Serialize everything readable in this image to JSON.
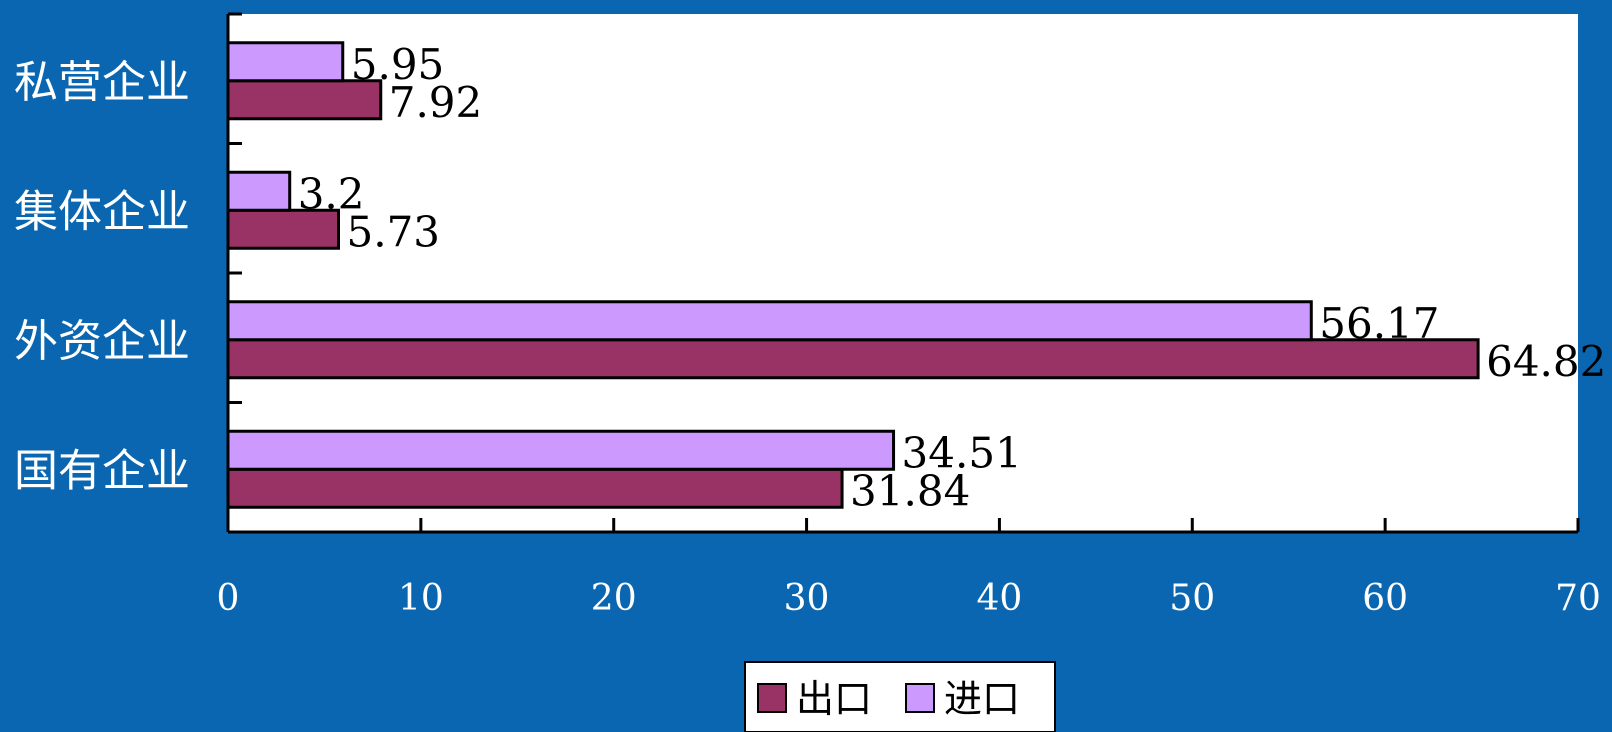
{
  "chart_data": {
    "type": "bar",
    "orientation": "horizontal",
    "categories": [
      "国有企业",
      "外资企业",
      "集体企业",
      "私营企业"
    ],
    "series": [
      {
        "name": "出口",
        "color": "#993366",
        "values": [
          31.84,
          64.82,
          5.73,
          7.92
        ]
      },
      {
        "name": "进口",
        "color": "#cc99ff",
        "values": [
          34.51,
          56.17,
          3.2,
          5.95
        ]
      }
    ],
    "data_labels": [
      [
        "31.84",
        "64.82",
        "5.73",
        "7.92"
      ],
      [
        "34.51",
        "56.17",
        "3.2",
        "5.95"
      ]
    ],
    "xlim": [
      0,
      70
    ],
    "xticks": [
      "0",
      "10",
      "20",
      "30",
      "40",
      "50",
      "60",
      "70"
    ],
    "grid": false,
    "legend_placement": "bottom-center",
    "background_color": "#0a66b0",
    "plot_background": "#ffffff"
  }
}
